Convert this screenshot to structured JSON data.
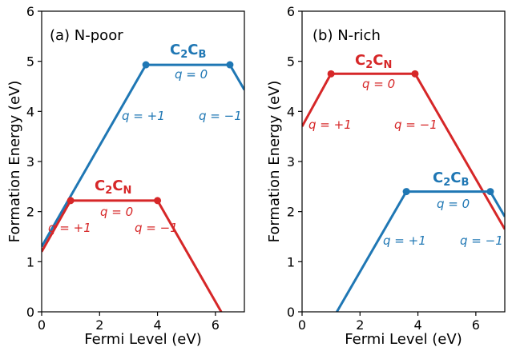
{
  "chart_data": [
    {
      "type": "line",
      "panel_label": "(a) N-poor",
      "xlabel": "Fermi Level (eV)",
      "ylabel": "Formation Energy (eV)",
      "xlim": [
        0,
        7
      ],
      "ylim": [
        0,
        6
      ],
      "xticks": [
        0,
        2,
        4,
        6
      ],
      "yticks": [
        0,
        1,
        2,
        3,
        4,
        5,
        6
      ],
      "series": [
        {
          "color": "#1f77b4",
          "species": {
            "base1": "C",
            "sub1": "2",
            "base2": "C",
            "sub2": "B"
          },
          "points": [
            [
              0,
              1.3
            ],
            [
              3.6,
              4.93
            ],
            [
              6.5,
              4.93
            ],
            [
              7,
              4.43
            ]
          ],
          "transitions": [
            [
              3.6,
              4.93
            ],
            [
              6.5,
              4.93
            ]
          ],
          "charge_labels": [
            "q = +1",
            "q = 0",
            "q = −1"
          ]
        },
        {
          "color": "#d62728",
          "species": {
            "base1": "C",
            "sub1": "2",
            "base2": "C",
            "sub2": "N"
          },
          "points": [
            [
              0,
              1.2
            ],
            [
              1.0,
              2.22
            ],
            [
              4.0,
              2.22
            ],
            [
              6.2,
              0.0
            ]
          ],
          "transitions": [
            [
              1.0,
              2.22
            ],
            [
              4.0,
              2.22
            ]
          ],
          "charge_labels": [
            "q = +1",
            "q = 0",
            "q = −1"
          ]
        }
      ]
    },
    {
      "type": "line",
      "panel_label": "(b) N-rich",
      "xlabel": "Fermi Level (eV)",
      "ylabel": "Formation Energy (eV)",
      "xlim": [
        0,
        7
      ],
      "ylim": [
        0,
        6
      ],
      "xticks": [
        0,
        2,
        4,
        6
      ],
      "yticks": [
        0,
        1,
        2,
        3,
        4,
        5,
        6
      ],
      "series": [
        {
          "color": "#d62728",
          "species": {
            "base1": "C",
            "sub1": "2",
            "base2": "C",
            "sub2": "N"
          },
          "points": [
            [
              0,
              3.7
            ],
            [
              1.0,
              4.75
            ],
            [
              3.9,
              4.75
            ],
            [
              7,
              1.65
            ]
          ],
          "transitions": [
            [
              1.0,
              4.75
            ],
            [
              3.9,
              4.75
            ]
          ],
          "charge_labels": [
            "q = +1",
            "q = 0",
            "q = −1"
          ]
        },
        {
          "color": "#1f77b4",
          "species": {
            "base1": "C",
            "sub1": "2",
            "base2": "C",
            "sub2": "B"
          },
          "points": [
            [
              1.2,
              0.0
            ],
            [
              3.6,
              2.4
            ],
            [
              6.5,
              2.4
            ],
            [
              7,
              1.9
            ]
          ],
          "transitions": [
            [
              3.6,
              2.4
            ],
            [
              6.5,
              2.4
            ]
          ],
          "charge_labels": [
            "q = +1",
            "q = 0",
            "q = −1"
          ]
        }
      ]
    }
  ]
}
